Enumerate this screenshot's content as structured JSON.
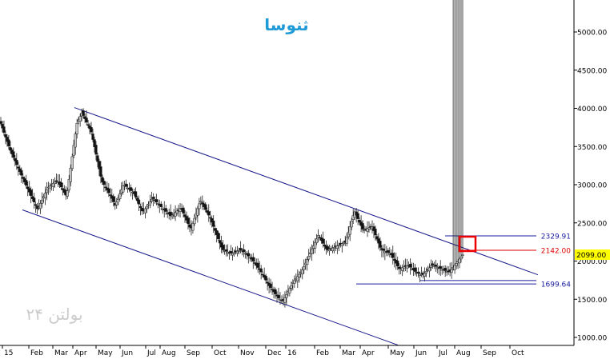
{
  "chart_data": {
    "type": "candlestick",
    "title": "ثنوسا",
    "watermark": "بولتن ۲۴",
    "ylim": [
      900,
      5450
    ],
    "y_ticks": [
      1000,
      1500,
      2000,
      2500,
      3000,
      3500,
      4000,
      4500,
      5000
    ],
    "y_tick_labels": [
      "1000.00",
      "1500.00",
      "2000.00",
      "2500.00",
      "3000.00",
      "3500.00",
      "4000.00",
      "4500.00",
      "5000.00"
    ],
    "x_tick_labels": [
      "15",
      "Feb",
      "Mar",
      "Apr",
      "May",
      "Jun",
      "Jul",
      "Aug",
      "Sep",
      "Oct",
      "Nov",
      "Dec",
      "16",
      "Feb",
      "Mar",
      "Apr",
      "May",
      "Jun",
      "Jul",
      "Aug",
      "Sep",
      "Oct"
    ],
    "grid": false,
    "colors": {
      "up": "#c8c8c8",
      "down": "#111111",
      "channel": "#1a1a8c",
      "level_blue": "#1a1aa0",
      "level_red": "#dd0000",
      "current_bg": "#ffff00",
      "title": "#1e9ad6",
      "watermark": "#cccccc",
      "highlight": "#ee0000"
    },
    "levels": [
      {
        "value": 2329.91,
        "label": "2329.91",
        "color": "blue"
      },
      {
        "value": 2142.0,
        "label": "2142.00",
        "color": "red"
      },
      {
        "value": 1699.64,
        "label": "1699.64",
        "color": "blue"
      }
    ],
    "current_price": {
      "value": 2099.0,
      "label": "2099.00"
    },
    "channel": {
      "upper_start_value": 4010,
      "upper_end_value": 1820,
      "lower_start_value": 2670,
      "lower_end_value": 900
    },
    "price_waypoints": [
      3800,
      3500,
      3150,
      2900,
      2680,
      2950,
      3050,
      2850,
      3700,
      3950,
      3700,
      3150,
      2950,
      2720,
      3000,
      2900,
      2650,
      2820,
      2700,
      2600,
      2700,
      2450,
      2800,
      2600,
      2450,
      2150,
      2100,
      2150,
      2050,
      1900,
      1700,
      1550,
      1480,
      1700,
      1850,
      2100,
      2350,
      2150,
      2200,
      2250,
      2650,
      2400,
      2450,
      2150,
      2100,
      1900,
      1950,
      1850,
      1820,
      1950,
      1900,
      1850,
      1900,
      2050,
      2099
    ],
    "series_close": [
      3800,
      3741,
      3682,
      3623,
      3565,
      3506,
      3450,
      3403,
      3356,
      3310,
      3263,
      3216,
      3170,
      3124,
      3079,
      3034,
      2990,
      2946,
      2902,
      2857,
      2815,
      2772,
      2728,
      2685,
      2711,
      2755,
      2800,
      2845,
      2890,
      2935,
      2968,
      2985,
      3002,
      3019,
      3035,
      3052,
      3040,
      3004,
      2969,
      2933,
      2897,
      2862,
      2920,
      3069,
      3218,
      3367,
      3516,
      3665,
      3804,
      3849,
      3894,
      3939,
      3905,
      3862,
      3819,
      3776,
      3733,
      3690,
      3591,
      3495,
      3398,
      3302,
      3206,
      3109,
      3035,
      3000,
      2964,
      2928,
      2893,
      2857,
      2820,
      2775,
      2730,
      2773,
      2826,
      2880,
      2934,
      2988,
      2992,
      2975,
      2957,
      2939,
      2921,
      2904,
      2880,
      2836,
      2790,
      2745,
      2700,
      2655,
      2655,
      2686,
      2716,
      2747,
      2777,
      2808,
      2816,
      2795,
      2773,
      2752,
      2730,
      2709,
      2685,
      2667,
      2649,
      2631,
      2613,
      2594,
      2600,
      2618,
      2636,
      2655,
      2673,
      2691,
      2672,
      2625,
      2580,
      2535,
      2489,
      2444,
      2432,
      2495,
      2559,
      2622,
      2686,
      2750,
      2782,
      2746,
      2710,
      2673,
      2637,
      2601,
      2563,
      2508,
      2453,
      2399,
      2344,
      2290,
      2235,
      2180,
      2146,
      2137,
      2128,
      2119,
      2110,
      2102,
      2102,
      2111,
      2120,
      2129,
      2138,
      2146,
      2139,
      2120,
      2102,
      2084,
      2066,
      2048,
      2024,
      1997,
      1970,
      1943,
      1915,
      1888,
      1857,
      1821,
      1785,
      1749,
      1712,
      1676,
      1650,
      1623,
      1596,
      1569,
      1541,
      1514,
      1494,
      1482,
      1481,
      1520,
      1560,
      1600,
      1640,
      1679,
      1719,
      1745,
      1772,
      1799,
      1826,
      1853,
      1883,
      1928,
      1973,
      2019,
      2064,
      2109,
      2154,
      2199,
      2245,
      2290,
      2335,
      2304,
      2268,
      2231,
      2195,
      2159,
      2145,
      2154,
      2163,
      2172,
      2181,
      2190,
      2199,
      2209,
      2218,
      2227,
      2236,
      2245,
      2307,
      2380,
      2452,
      2525,
      2597,
      2645,
      2599,
      2554,
      2508,
      2463,
      2417,
      2409,
      2418,
      2427,
      2436,
      2445,
      2450,
      2396,
      2341,
      2287,
      2233,
      2178,
      2148,
      2139,
      2130,
      2121,
      2112,
      2103,
      2080,
      2044,
      2007,
      1971,
      1935,
      1899,
      1906,
      1915,
      1924,
      1933,
      1942,
      1936,
      1918,
      1900,
      1882,
      1863,
      1845,
      1839,
      1834,
      1828,
      1823,
      1841,
      1865,
      1888,
      1912,
      1936,
      1948,
      1939,
      1930,
      1921,
      1912,
      1903,
      1892,
      1883,
      1874,
      1865,
      1856,
      1862,
      1889,
      1917,
      1944,
      1971,
      1999,
      2027,
      2054,
      2081
    ],
    "wick_size": [
      59,
      44,
      80,
      51,
      38,
      61,
      84,
      27,
      55,
      44,
      93,
      68,
      48,
      39,
      49,
      29,
      70,
      68,
      98,
      42,
      100,
      67,
      34,
      40,
      96,
      45,
      99,
      34,
      85,
      96,
      71,
      39,
      72,
      55,
      61,
      93,
      97,
      97,
      59,
      74,
      56,
      53,
      43,
      59,
      47,
      38,
      74,
      29,
      58,
      38,
      35,
      58,
      33,
      40,
      100,
      59,
      37,
      72,
      69,
      38,
      53,
      39,
      34,
      74,
      35,
      36,
      73,
      80,
      74,
      91,
      89,
      35,
      95,
      51,
      42,
      52,
      99,
      55,
      60,
      57,
      50,
      72,
      39,
      46,
      37,
      55,
      32,
      56,
      38,
      73,
      98,
      25,
      29,
      37,
      91,
      100,
      49,
      43,
      74,
      56,
      58,
      36,
      27,
      99,
      45,
      42,
      51,
      100,
      43,
      65,
      95,
      43,
      67,
      68,
      61,
      34,
      60,
      63,
      35,
      93,
      78,
      29,
      54,
      80,
      38,
      76,
      64,
      95,
      42,
      30,
      41,
      95,
      86,
      41,
      75,
      42,
      34,
      28,
      89,
      91,
      68,
      83,
      66,
      100,
      26,
      81,
      77,
      44,
      52,
      68,
      37,
      92,
      32,
      71,
      45,
      35,
      42,
      47,
      45,
      58,
      69,
      58,
      62,
      97,
      50,
      38,
      100,
      30,
      54,
      69,
      66,
      96,
      36,
      29,
      47,
      97,
      100,
      62,
      67,
      85,
      63,
      87,
      27,
      53,
      43,
      66,
      66,
      91,
      44,
      46,
      41,
      94,
      59,
      40,
      94,
      77,
      64,
      68,
      52,
      62,
      81,
      32,
      45,
      93,
      75,
      68,
      29,
      59,
      33,
      40,
      54,
      57,
      74,
      33,
      62,
      29,
      31,
      65,
      60,
      76,
      69,
      41,
      88,
      33,
      50,
      40,
      35,
      87,
      44,
      56,
      36,
      94,
      84,
      36,
      83,
      46,
      43,
      28,
      73,
      50,
      43,
      59,
      94,
      74,
      29,
      78,
      49,
      98,
      90,
      97,
      57,
      48,
      39,
      41,
      88,
      90,
      85,
      53,
      75,
      80,
      71,
      50,
      65,
      60,
      29,
      97,
      26,
      76,
      51,
      48,
      57,
      85,
      38,
      52,
      66,
      52,
      30,
      83,
      45,
      48,
      38,
      71,
      62,
      93,
      97
    ]
  }
}
